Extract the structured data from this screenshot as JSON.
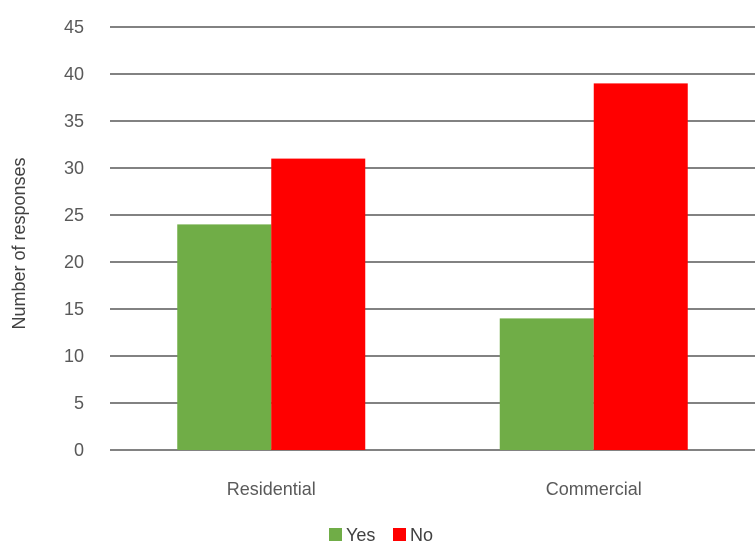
{
  "chart_data": {
    "type": "bar",
    "title": "",
    "xlabel": "",
    "ylabel": "Number of responses",
    "categories": [
      "Residential",
      "Commercial"
    ],
    "series": [
      {
        "name": "Yes",
        "values": [
          24,
          14
        ],
        "color": "#70AD47"
      },
      {
        "name": "No",
        "values": [
          31,
          39
        ],
        "color": "#FF0000"
      }
    ],
    "ylim": [
      0,
      45
    ],
    "yticks": [
      0,
      5,
      10,
      15,
      20,
      25,
      30,
      35,
      40,
      45
    ],
    "grid": true,
    "legend_position": "bottom"
  }
}
